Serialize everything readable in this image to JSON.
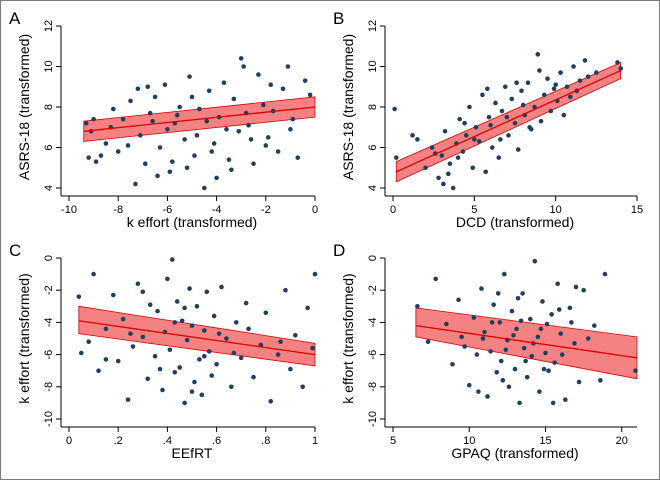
{
  "chart_data": [
    {
      "type": "scatter",
      "panel_label": "A",
      "xlabel": "k effort (transformed)",
      "ylabel": "ASRS-18 (transformed)",
      "xlim": [
        -10,
        0
      ],
      "ylim": [
        4,
        12
      ],
      "xticks": [
        -10,
        -8,
        -6,
        -4,
        -2,
        0
      ],
      "xtick_labels": [
        "-10",
        "-8",
        "-6",
        "-4",
        "-2",
        "0"
      ],
      "yticks": [
        4,
        6,
        8,
        10,
        12
      ],
      "ytick_labels": [
        "4",
        "6",
        "8",
        "10",
        "12"
      ],
      "fit": {
        "x": [
          -9.4,
          0
        ],
        "y": [
          6.8,
          8.0
        ],
        "ci_low": [
          6.3,
          7.5
        ],
        "ci_high": [
          7.3,
          8.5
        ]
      },
      "points": [
        [
          -9.3,
          7.2
        ],
        [
          -9.1,
          6.8
        ],
        [
          -8.9,
          5.3
        ],
        [
          -8.7,
          5.6
        ],
        [
          -9.2,
          5.5
        ],
        [
          -8.5,
          6.2
        ],
        [
          -8.3,
          7.0
        ],
        [
          -8.0,
          5.8
        ],
        [
          -7.8,
          7.4
        ],
        [
          -7.5,
          8.3
        ],
        [
          -7.3,
          4.2
        ],
        [
          -7.1,
          6.6
        ],
        [
          -6.9,
          5.2
        ],
        [
          -6.7,
          7.7
        ],
        [
          -6.5,
          8.5
        ],
        [
          -6.3,
          6.0
        ],
        [
          -6.1,
          9.1
        ],
        [
          -5.9,
          4.8
        ],
        [
          -5.7,
          7.2
        ],
        [
          -5.5,
          8.0
        ],
        [
          -5.3,
          6.4
        ],
        [
          -5.1,
          9.5
        ],
        [
          -4.9,
          5.6
        ],
        [
          -4.7,
          7.9
        ],
        [
          -4.5,
          4.0
        ],
        [
          -4.3,
          8.8
        ],
        [
          -4.1,
          6.2
        ],
        [
          -3.9,
          7.5
        ],
        [
          -3.7,
          9.2
        ],
        [
          -3.5,
          5.4
        ],
        [
          -3.3,
          8.4
        ],
        [
          -3.1,
          6.8
        ],
        [
          -2.9,
          10.0
        ],
        [
          -2.7,
          7.1
        ],
        [
          -2.5,
          5.2
        ],
        [
          -2.3,
          9.6
        ],
        [
          -2.1,
          8.1
        ],
        [
          -1.9,
          6.5
        ],
        [
          -1.7,
          7.8
        ],
        [
          -1.5,
          5.8
        ],
        [
          -1.3,
          8.9
        ],
        [
          -1.1,
          10.0
        ],
        [
          -0.9,
          7.4
        ],
        [
          -0.7,
          5.5
        ],
        [
          -0.4,
          9.3
        ],
        [
          -0.2,
          8.6
        ],
        [
          -5.2,
          5.0
        ],
        [
          -6.8,
          9.0
        ],
        [
          -4.0,
          4.5
        ],
        [
          -3.0,
          10.4
        ],
        [
          -7.2,
          8.9
        ],
        [
          -6.0,
          6.9
        ],
        [
          -5.6,
          7.6
        ],
        [
          -4.8,
          6.6
        ],
        [
          -4.4,
          7.3
        ],
        [
          -3.6,
          6.9
        ],
        [
          -2.8,
          7.7
        ],
        [
          -2.0,
          6.1
        ],
        [
          -8.2,
          7.9
        ],
        [
          -7.6,
          6.1
        ],
        [
          -6.4,
          4.6
        ],
        [
          -5.8,
          5.3
        ],
        [
          -5.0,
          8.5
        ],
        [
          -4.2,
          5.8
        ],
        [
          -3.4,
          4.9
        ],
        [
          -2.6,
          6.4
        ],
        [
          -1.8,
          9.1
        ],
        [
          -1.0,
          6.9
        ],
        [
          -9.0,
          7.4
        ],
        [
          -6.6,
          7.3
        ]
      ]
    },
    {
      "type": "scatter",
      "panel_label": "B",
      "xlabel": "DCD (transformed)",
      "ylabel": "ASRS-18 (transformed)",
      "xlim": [
        0,
        15
      ],
      "ylim": [
        4,
        12
      ],
      "xticks": [
        0,
        5,
        10,
        15
      ],
      "xtick_labels": [
        "0",
        "5",
        "10",
        "15"
      ],
      "yticks": [
        4,
        6,
        8,
        10,
        12
      ],
      "ytick_labels": [
        "4",
        "6",
        "8",
        "10",
        "12"
      ],
      "fit": {
        "x": [
          0.2,
          14
        ],
        "y": [
          4.8,
          9.8
        ],
        "ci_low": [
          4.3,
          9.4
        ],
        "ci_high": [
          5.3,
          10.2
        ]
      },
      "points": [
        [
          0.1,
          7.9
        ],
        [
          0.2,
          5.5
        ],
        [
          1.2,
          6.6
        ],
        [
          1.5,
          6.4
        ],
        [
          2.0,
          5.0
        ],
        [
          2.4,
          6.0
        ],
        [
          2.8,
          4.5
        ],
        [
          3.0,
          5.6
        ],
        [
          3.2,
          6.8
        ],
        [
          3.5,
          5.2
        ],
        [
          3.7,
          4.0
        ],
        [
          3.9,
          6.2
        ],
        [
          4.1,
          7.4
        ],
        [
          4.3,
          5.8
        ],
        [
          4.5,
          6.6
        ],
        [
          4.7,
          8.0
        ],
        [
          4.9,
          5.0
        ],
        [
          5.1,
          7.0
        ],
        [
          5.3,
          6.3
        ],
        [
          5.5,
          8.6
        ],
        [
          5.7,
          4.8
        ],
        [
          5.9,
          7.5
        ],
        [
          6.1,
          6.0
        ],
        [
          6.3,
          8.2
        ],
        [
          6.5,
          5.5
        ],
        [
          6.7,
          7.8
        ],
        [
          6.9,
          9.0
        ],
        [
          7.1,
          6.6
        ],
        [
          7.3,
          8.4
        ],
        [
          7.5,
          7.2
        ],
        [
          7.7,
          5.9
        ],
        [
          7.9,
          8.8
        ],
        [
          8.1,
          7.6
        ],
        [
          8.3,
          9.2
        ],
        [
          8.5,
          6.9
        ],
        [
          8.7,
          8.0
        ],
        [
          8.9,
          10.6
        ],
        [
          9.1,
          7.3
        ],
        [
          9.3,
          8.6
        ],
        [
          9.5,
          9.4
        ],
        [
          9.7,
          7.8
        ],
        [
          9.9,
          8.9
        ],
        [
          10.1,
          8.3
        ],
        [
          10.3,
          9.7
        ],
        [
          10.5,
          7.6
        ],
        [
          10.7,
          9.0
        ],
        [
          10.9,
          8.5
        ],
        [
          11.1,
          10.0
        ],
        [
          11.3,
          8.8
        ],
        [
          11.5,
          9.3
        ],
        [
          13.8,
          10.2
        ],
        [
          14.0,
          9.9
        ],
        [
          5.0,
          6.4
        ],
        [
          6.0,
          7.1
        ],
        [
          7.0,
          7.5
        ],
        [
          8.0,
          8.1
        ],
        [
          4.0,
          5.5
        ],
        [
          3.4,
          4.7
        ],
        [
          9.0,
          9.8
        ],
        [
          10.0,
          9.1
        ],
        [
          12.0,
          9.5
        ],
        [
          12.5,
          9.7
        ],
        [
          11.8,
          10.3
        ],
        [
          2.6,
          5.7
        ],
        [
          5.8,
          8.9
        ],
        [
          6.6,
          6.4
        ],
        [
          7.6,
          9.2
        ],
        [
          8.4,
          7.0
        ],
        [
          4.4,
          7.2
        ],
        [
          3.1,
          4.2
        ]
      ]
    },
    {
      "type": "scatter",
      "panel_label": "C",
      "xlabel": "EEfRT",
      "ylabel": "k effort (transformed)",
      "xlim": [
        0,
        1
      ],
      "ylim": [
        -10,
        0
      ],
      "xticks": [
        0,
        0.2,
        0.4,
        0.6,
        0.8,
        1
      ],
      "xtick_labels": [
        "0",
        ".2",
        ".4",
        ".6",
        ".8",
        "1"
      ],
      "yticks": [
        -10,
        -8,
        -6,
        -4,
        -2,
        0
      ],
      "ytick_labels": [
        "-10",
        "-8",
        "-6",
        "-4",
        "-2",
        "0"
      ],
      "fit": {
        "x": [
          0.04,
          1
        ],
        "y": [
          -3.9,
          -6.0
        ],
        "ci_low": [
          -4.7,
          -6.7
        ],
        "ci_high": [
          -3.0,
          -5.3
        ]
      },
      "points": [
        [
          0.04,
          -2.4
        ],
        [
          0.05,
          -5.9
        ],
        [
          0.08,
          -5.2
        ],
        [
          0.1,
          -1.0
        ],
        [
          0.12,
          -7.0
        ],
        [
          0.15,
          -4.4
        ],
        [
          0.18,
          -2.3
        ],
        [
          0.2,
          -6.4
        ],
        [
          0.22,
          -3.8
        ],
        [
          0.24,
          -8.8
        ],
        [
          0.26,
          -5.5
        ],
        [
          0.28,
          -1.6
        ],
        [
          0.3,
          -4.9
        ],
        [
          0.32,
          -7.5
        ],
        [
          0.33,
          -2.9
        ],
        [
          0.35,
          -6.1
        ],
        [
          0.36,
          -3.3
        ],
        [
          0.38,
          -8.2
        ],
        [
          0.39,
          -4.6
        ],
        [
          0.4,
          -1.3
        ],
        [
          0.41,
          -5.7
        ],
        [
          0.42,
          -0.1
        ],
        [
          0.43,
          -7.1
        ],
        [
          0.44,
          -2.7
        ],
        [
          0.45,
          -6.8
        ],
        [
          0.46,
          -3.9
        ],
        [
          0.47,
          -9.0
        ],
        [
          0.48,
          -5.1
        ],
        [
          0.49,
          -1.9
        ],
        [
          0.5,
          -4.2
        ],
        [
          0.51,
          -7.7
        ],
        [
          0.52,
          -3.0
        ],
        [
          0.53,
          -6.3
        ],
        [
          0.54,
          -8.5
        ],
        [
          0.55,
          -4.5
        ],
        [
          0.56,
          -2.1
        ],
        [
          0.57,
          -5.8
        ],
        [
          0.58,
          -7.3
        ],
        [
          0.59,
          -3.6
        ],
        [
          0.6,
          -6.6
        ],
        [
          0.62,
          -1.8
        ],
        [
          0.64,
          -5.0
        ],
        [
          0.66,
          -8.0
        ],
        [
          0.68,
          -4.0
        ],
        [
          0.7,
          -6.2
        ],
        [
          0.72,
          -2.8
        ],
        [
          0.75,
          -7.4
        ],
        [
          0.78,
          -5.4
        ],
        [
          0.8,
          -3.4
        ],
        [
          0.82,
          -8.9
        ],
        [
          0.85,
          -6.0
        ],
        [
          0.88,
          -2.0
        ],
        [
          0.9,
          -6.9
        ],
        [
          0.92,
          -4.8
        ],
        [
          0.95,
          -8.0
        ],
        [
          0.97,
          -3.1
        ],
        [
          0.99,
          -5.6
        ],
        [
          1.0,
          -1.0
        ],
        [
          0.3,
          -2.1
        ],
        [
          0.37,
          -6.9
        ],
        [
          0.43,
          -4.0
        ],
        [
          0.47,
          -3.1
        ],
        [
          0.5,
          -8.3
        ],
        [
          0.55,
          -6.1
        ],
        [
          0.61,
          -4.7
        ],
        [
          0.67,
          -5.9
        ],
        [
          0.73,
          -4.4
        ],
        [
          0.86,
          -5.2
        ],
        [
          0.25,
          -4.7
        ],
        [
          0.15,
          -6.3
        ]
      ]
    },
    {
      "type": "scatter",
      "panel_label": "D",
      "xlabel": "GPAQ (transformed)",
      "ylabel": "k effort (transformed)",
      "xlim": [
        5,
        21
      ],
      "ylim": [
        -10,
        0
      ],
      "xticks": [
        5,
        10,
        15,
        20
      ],
      "xtick_labels": [
        "5",
        "10",
        "15",
        "20"
      ],
      "yticks": [
        -10,
        -8,
        -6,
        -4,
        -2,
        0
      ],
      "ytick_labels": [
        "-10",
        "-8",
        "-6",
        "-4",
        "-2",
        "0"
      ],
      "fit": {
        "x": [
          6.5,
          21
        ],
        "y": [
          -4.2,
          -6.2
        ],
        "ci_low": [
          -4.9,
          -7.5
        ],
        "ci_high": [
          -3.1,
          -4.9
        ]
      },
      "points": [
        [
          6.6,
          -3.0
        ],
        [
          7.3,
          -5.2
        ],
        [
          7.8,
          -1.3
        ],
        [
          8.5,
          -4.1
        ],
        [
          8.9,
          -6.6
        ],
        [
          9.3,
          -2.6
        ],
        [
          9.7,
          -5.5
        ],
        [
          10.0,
          -7.9
        ],
        [
          10.3,
          -3.7
        ],
        [
          10.5,
          -6.0
        ],
        [
          10.8,
          -1.9
        ],
        [
          11.0,
          -4.6
        ],
        [
          11.2,
          -8.6
        ],
        [
          11.4,
          -5.8
        ],
        [
          11.6,
          -2.9
        ],
        [
          11.8,
          -7.1
        ],
        [
          12.0,
          -4.0
        ],
        [
          12.1,
          -6.4
        ],
        [
          12.3,
          -1.0
        ],
        [
          12.5,
          -5.1
        ],
        [
          12.6,
          -8.0
        ],
        [
          12.8,
          -3.3
        ],
        [
          13.0,
          -6.9
        ],
        [
          13.1,
          -4.4
        ],
        [
          13.3,
          -9.0
        ],
        [
          13.5,
          -2.2
        ],
        [
          13.6,
          -5.6
        ],
        [
          13.8,
          -7.4
        ],
        [
          14.0,
          -3.8
        ],
        [
          14.1,
          -6.1
        ],
        [
          14.3,
          -0.2
        ],
        [
          14.5,
          -4.9
        ],
        [
          14.6,
          -8.3
        ],
        [
          14.8,
          -2.7
        ],
        [
          15.0,
          -5.9
        ],
        [
          15.2,
          -7.0
        ],
        [
          15.4,
          -3.5
        ],
        [
          15.6,
          -6.5
        ],
        [
          15.8,
          -1.6
        ],
        [
          16.0,
          -4.7
        ],
        [
          16.3,
          -8.8
        ],
        [
          16.6,
          -3.1
        ],
        [
          16.9,
          -5.3
        ],
        [
          17.2,
          -7.7
        ],
        [
          17.5,
          -2.0
        ],
        [
          17.8,
          -5.0
        ],
        [
          18.2,
          -4.2
        ],
        [
          18.6,
          -7.6
        ],
        [
          18.9,
          -1.0
        ],
        [
          20.9,
          -7.0
        ],
        [
          12.2,
          -7.6
        ],
        [
          13.2,
          -2.5
        ],
        [
          14.2,
          -5.3
        ],
        [
          15.1,
          -4.1
        ],
        [
          11.5,
          -4.0
        ],
        [
          13.7,
          -6.4
        ],
        [
          14.9,
          -6.9
        ],
        [
          16.1,
          -6.0
        ],
        [
          12.9,
          -4.8
        ],
        [
          10.6,
          -8.3
        ],
        [
          9.5,
          -4.9
        ],
        [
          15.5,
          -9.0
        ],
        [
          16.7,
          -4.0
        ],
        [
          17.0,
          -1.8
        ],
        [
          11.9,
          -2.2
        ],
        [
          13.4,
          -3.9
        ],
        [
          14.7,
          -4.4
        ],
        [
          12.4,
          -5.7
        ],
        [
          10.9,
          -5.0
        ],
        [
          15.9,
          -3.2
        ]
      ]
    }
  ]
}
